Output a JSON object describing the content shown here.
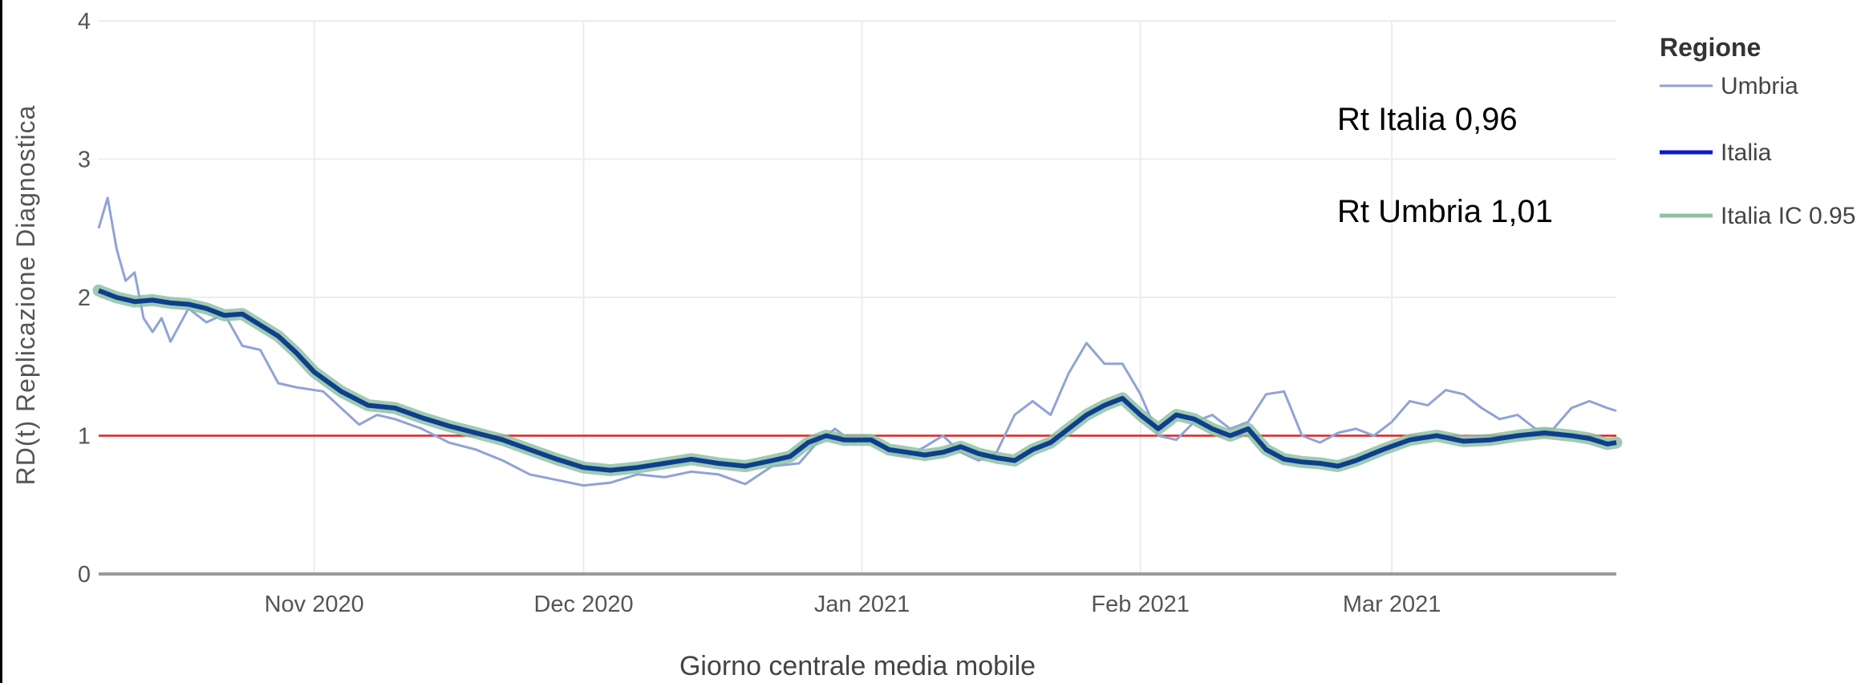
{
  "chart_data": {
    "type": "line",
    "xlabel": "Giorno centrale media mobile",
    "ylabel": "RD(t) Replicazione Diagnostica",
    "ylim": [
      0,
      4
    ],
    "yticks": [
      "0",
      "1",
      "2",
      "3",
      "4"
    ],
    "xlim": [
      "2020-10-08",
      "2021-03-26"
    ],
    "xticks": [
      {
        "label": "Nov 2020",
        "date": "2020-11-01"
      },
      {
        "label": "Dec 2020",
        "date": "2020-12-01"
      },
      {
        "label": "Jan 2021",
        "date": "2021-01-01"
      },
      {
        "label": "Feb 2021",
        "date": "2021-02-01"
      },
      {
        "label": "Mar 2021",
        "date": "2021-03-01"
      }
    ],
    "threshold": {
      "y": 1,
      "color": "#e02020"
    },
    "grid": true,
    "legend": {
      "title": "Regione",
      "position": "right",
      "items": [
        {
          "label": "Umbria",
          "color": "#8fa3d6"
        },
        {
          "label": "Italia",
          "color": "#0a1acc"
        },
        {
          "label": "Italia IC 0.95",
          "color": "#8fc1a6"
        }
      ]
    },
    "annotations": [
      "Rt Italia 0,96",
      "Rt Umbria 1,01"
    ],
    "series": [
      {
        "name": "Umbria",
        "color": "#8fa3d6",
        "points": [
          [
            "2020-10-08",
            2.5
          ],
          [
            "2020-10-09",
            2.72
          ],
          [
            "2020-10-10",
            2.35
          ],
          [
            "2020-10-11",
            2.12
          ],
          [
            "2020-10-12",
            2.18
          ],
          [
            "2020-10-13",
            1.85
          ],
          [
            "2020-10-14",
            1.75
          ],
          [
            "2020-10-15",
            1.85
          ],
          [
            "2020-10-16",
            1.68
          ],
          [
            "2020-10-18",
            1.92
          ],
          [
            "2020-10-20",
            1.82
          ],
          [
            "2020-10-22",
            1.88
          ],
          [
            "2020-10-24",
            1.65
          ],
          [
            "2020-10-26",
            1.62
          ],
          [
            "2020-10-28",
            1.38
          ],
          [
            "2020-10-30",
            1.35
          ],
          [
            "2020-11-02",
            1.32
          ],
          [
            "2020-11-04",
            1.2
          ],
          [
            "2020-11-06",
            1.08
          ],
          [
            "2020-11-08",
            1.15
          ],
          [
            "2020-11-10",
            1.12
          ],
          [
            "2020-11-13",
            1.05
          ],
          [
            "2020-11-16",
            0.95
          ],
          [
            "2020-11-19",
            0.9
          ],
          [
            "2020-11-22",
            0.82
          ],
          [
            "2020-11-25",
            0.72
          ],
          [
            "2020-11-28",
            0.68
          ],
          [
            "2020-12-01",
            0.64
          ],
          [
            "2020-12-04",
            0.66
          ],
          [
            "2020-12-07",
            0.72
          ],
          [
            "2020-12-10",
            0.7
          ],
          [
            "2020-12-13",
            0.74
          ],
          [
            "2020-12-16",
            0.72
          ],
          [
            "2020-12-19",
            0.65
          ],
          [
            "2020-12-22",
            0.78
          ],
          [
            "2020-12-25",
            0.8
          ],
          [
            "2020-12-27",
            0.95
          ],
          [
            "2020-12-29",
            1.05
          ],
          [
            "2020-12-31",
            0.95
          ],
          [
            "2021-01-02",
            1.0
          ],
          [
            "2021-01-04",
            0.88
          ],
          [
            "2021-01-06",
            0.85
          ],
          [
            "2021-01-08",
            0.92
          ],
          [
            "2021-01-10",
            1.0
          ],
          [
            "2021-01-12",
            0.88
          ],
          [
            "2021-01-14",
            0.82
          ],
          [
            "2021-01-16",
            0.88
          ],
          [
            "2021-01-18",
            1.15
          ],
          [
            "2021-01-20",
            1.25
          ],
          [
            "2021-01-22",
            1.15
          ],
          [
            "2021-01-24",
            1.45
          ],
          [
            "2021-01-26",
            1.67
          ],
          [
            "2021-01-28",
            1.52
          ],
          [
            "2021-01-30",
            1.52
          ],
          [
            "2021-02-01",
            1.3
          ],
          [
            "2021-02-03",
            1.0
          ],
          [
            "2021-02-05",
            0.97
          ],
          [
            "2021-02-07",
            1.1
          ],
          [
            "2021-02-09",
            1.15
          ],
          [
            "2021-02-11",
            1.05
          ],
          [
            "2021-02-13",
            1.1
          ],
          [
            "2021-02-15",
            1.3
          ],
          [
            "2021-02-17",
            1.32
          ],
          [
            "2021-02-19",
            1.0
          ],
          [
            "2021-02-21",
            0.95
          ],
          [
            "2021-02-23",
            1.02
          ],
          [
            "2021-02-25",
            1.05
          ],
          [
            "2021-02-27",
            1.0
          ],
          [
            "2021-03-01",
            1.1
          ],
          [
            "2021-03-03",
            1.25
          ],
          [
            "2021-03-05",
            1.22
          ],
          [
            "2021-03-07",
            1.33
          ],
          [
            "2021-03-09",
            1.3
          ],
          [
            "2021-03-11",
            1.2
          ],
          [
            "2021-03-13",
            1.12
          ],
          [
            "2021-03-15",
            1.15
          ],
          [
            "2021-03-17",
            1.05
          ],
          [
            "2021-03-19",
            1.05
          ],
          [
            "2021-03-21",
            1.2
          ],
          [
            "2021-03-23",
            1.25
          ],
          [
            "2021-03-25",
            1.2
          ],
          [
            "2021-03-26",
            1.18
          ]
        ]
      },
      {
        "name": "Italia",
        "color": "#0a1acc",
        "points": [
          [
            "2020-10-08",
            2.05
          ],
          [
            "2020-10-10",
            2.0
          ],
          [
            "2020-10-12",
            1.97
          ],
          [
            "2020-10-14",
            1.98
          ],
          [
            "2020-10-16",
            1.96
          ],
          [
            "2020-10-18",
            1.95
          ],
          [
            "2020-10-20",
            1.92
          ],
          [
            "2020-10-22",
            1.87
          ],
          [
            "2020-10-24",
            1.88
          ],
          [
            "2020-10-26",
            1.8
          ],
          [
            "2020-10-28",
            1.72
          ],
          [
            "2020-10-30",
            1.6
          ],
          [
            "2020-11-01",
            1.46
          ],
          [
            "2020-11-04",
            1.32
          ],
          [
            "2020-11-07",
            1.22
          ],
          [
            "2020-11-10",
            1.2
          ],
          [
            "2020-11-13",
            1.13
          ],
          [
            "2020-11-16",
            1.07
          ],
          [
            "2020-11-19",
            1.02
          ],
          [
            "2020-11-22",
            0.97
          ],
          [
            "2020-11-25",
            0.9
          ],
          [
            "2020-11-28",
            0.83
          ],
          [
            "2020-12-01",
            0.77
          ],
          [
            "2020-12-04",
            0.75
          ],
          [
            "2020-12-07",
            0.77
          ],
          [
            "2020-12-10",
            0.8
          ],
          [
            "2020-12-13",
            0.83
          ],
          [
            "2020-12-16",
            0.8
          ],
          [
            "2020-12-19",
            0.78
          ],
          [
            "2020-12-22",
            0.82
          ],
          [
            "2020-12-24",
            0.85
          ],
          [
            "2020-12-26",
            0.95
          ],
          [
            "2020-12-28",
            1.0
          ],
          [
            "2020-12-30",
            0.97
          ],
          [
            "2021-01-02",
            0.97
          ],
          [
            "2021-01-04",
            0.9
          ],
          [
            "2021-01-06",
            0.88
          ],
          [
            "2021-01-08",
            0.86
          ],
          [
            "2021-01-10",
            0.88
          ],
          [
            "2021-01-12",
            0.92
          ],
          [
            "2021-01-14",
            0.87
          ],
          [
            "2021-01-16",
            0.84
          ],
          [
            "2021-01-18",
            0.82
          ],
          [
            "2021-01-20",
            0.9
          ],
          [
            "2021-01-22",
            0.95
          ],
          [
            "2021-01-24",
            1.05
          ],
          [
            "2021-01-26",
            1.15
          ],
          [
            "2021-01-28",
            1.22
          ],
          [
            "2021-01-30",
            1.27
          ],
          [
            "2021-02-01",
            1.15
          ],
          [
            "2021-02-03",
            1.05
          ],
          [
            "2021-02-05",
            1.15
          ],
          [
            "2021-02-07",
            1.12
          ],
          [
            "2021-02-09",
            1.05
          ],
          [
            "2021-02-11",
            1.0
          ],
          [
            "2021-02-13",
            1.05
          ],
          [
            "2021-02-15",
            0.9
          ],
          [
            "2021-02-17",
            0.83
          ],
          [
            "2021-02-19",
            0.81
          ],
          [
            "2021-02-21",
            0.8
          ],
          [
            "2021-02-23",
            0.78
          ],
          [
            "2021-02-25",
            0.82
          ],
          [
            "2021-02-28",
            0.9
          ],
          [
            "2021-03-03",
            0.97
          ],
          [
            "2021-03-06",
            1.0
          ],
          [
            "2021-03-09",
            0.96
          ],
          [
            "2021-03-12",
            0.97
          ],
          [
            "2021-03-15",
            1.0
          ],
          [
            "2021-03-18",
            1.02
          ],
          [
            "2021-03-21",
            1.0
          ],
          [
            "2021-03-23",
            0.98
          ],
          [
            "2021-03-24",
            0.96
          ],
          [
            "2021-03-25",
            0.94
          ],
          [
            "2021-03-26",
            0.95
          ]
        ]
      }
    ]
  }
}
